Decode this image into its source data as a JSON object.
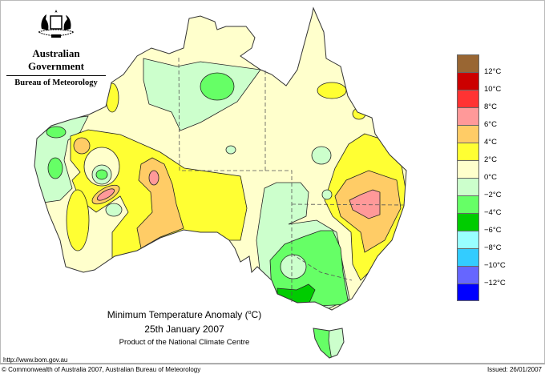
{
  "header": {
    "government": "Australian Government",
    "bureau": "Bureau of Meteorology"
  },
  "title": {
    "main": "Minimum Temperature Anomaly (",
    "unit_sup": "o",
    "unit": "C)",
    "date": "25th January 2007",
    "product": "Product of the National Climate Centre"
  },
  "footer": {
    "url": "http://www.bom.gov.au",
    "copyright": "© Commonwealth of Australia 2007, Australian Bureau of Meteorology",
    "issued": "Issued: 26/01/2007"
  },
  "legend": {
    "colors": [
      "#996633",
      "#CC0000",
      "#FF3333",
      "#FF9999",
      "#FFCC66",
      "#FFFF33",
      "#FFFFCC",
      "#CCFFCC",
      "#66FF66",
      "#00CC00",
      "#99FFFF",
      "#33CCFF",
      "#6666FF",
      "#0000FF"
    ],
    "labels": [
      "12°C",
      "10°C",
      "8°C",
      "6°C",
      "4°C",
      "2°C",
      "0°C",
      "−2°C",
      "−4°C",
      "−6°C",
      "−8°C",
      "−10°C",
      "−12°C"
    ]
  }
}
